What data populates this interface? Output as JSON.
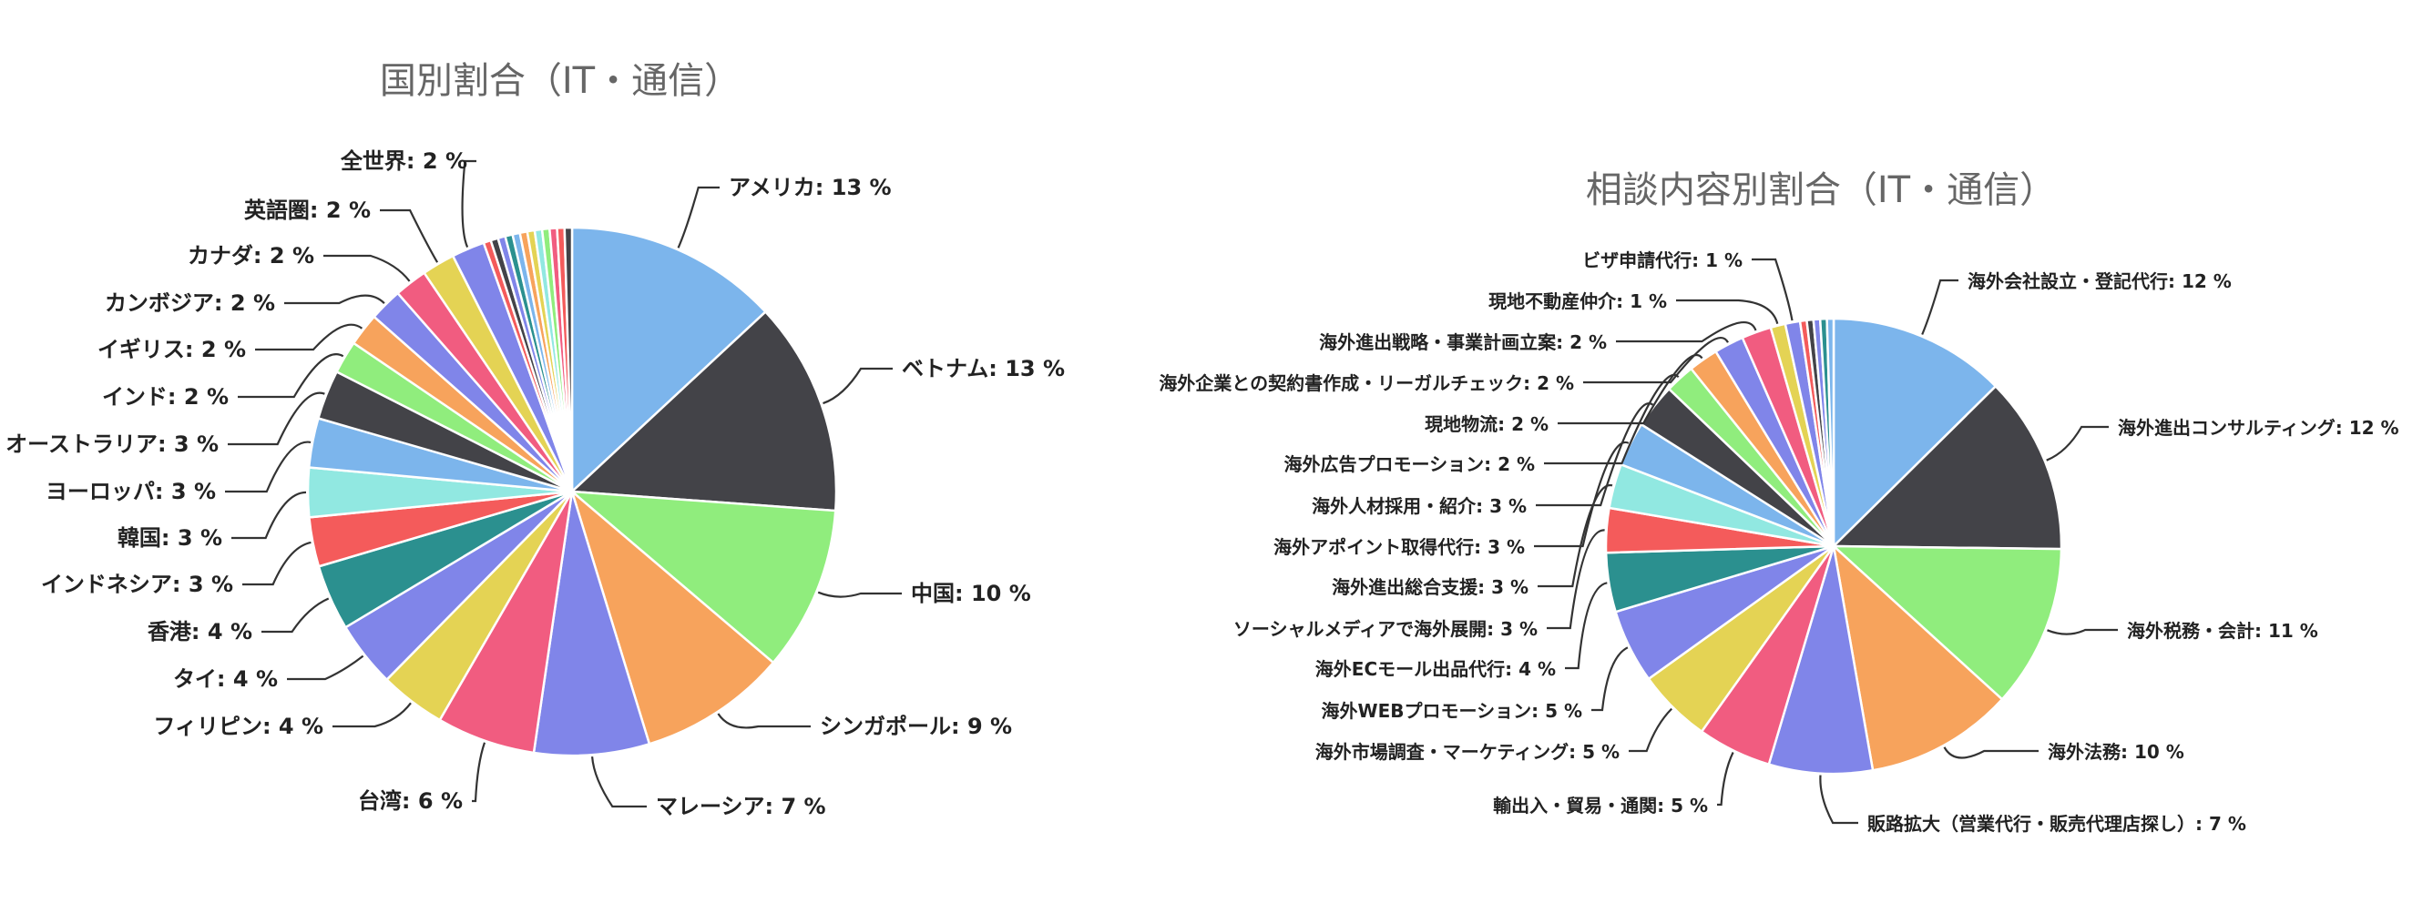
{
  "chart_data": [
    {
      "type": "pie",
      "title": "国別割合（IT・通信）",
      "categories": [
        "アメリカ",
        "ベトナム",
        "中国",
        "シンガポール",
        "マレーシア",
        "台湾",
        "フィリピン",
        "タイ",
        "香港",
        "インドネシア",
        "韓国",
        "ヨーロッパ",
        "オーストラリア",
        "インド",
        "イギリス",
        "カンボジア",
        "カナダ",
        "英語圏",
        "全世界"
      ],
      "values": [
        13,
        13,
        10,
        9,
        7,
        6,
        4,
        4,
        4,
        3,
        3,
        3,
        3,
        2,
        2,
        2,
        2,
        2,
        2
      ],
      "labels": [
        "アメリカ: 13 %",
        "ベトナム: 13 %",
        "中国: 10 %",
        "シンガポール: 9 %",
        "マレーシア: 7 %",
        "台湾: 6 %",
        "フィリピン: 4 %",
        "タイ: 4 %",
        "香港: 4 %",
        "インドネシア: 3 %",
        "韓国: 3 %",
        "ヨーロッパ: 3 %",
        "オーストラリア: 3 %",
        "インド: 2 %",
        "イギリス: 2 %",
        "カンボジア: 2 %",
        "カナダ: 2 %",
        "英語圏: 2 %",
        "全世界: 2 %"
      ],
      "colors": [
        "#7cb5ec",
        "#434348",
        "#90ed7d",
        "#f7a35c",
        "#8085e9",
        "#f15c80",
        "#e4d354",
        "#2b908f",
        "#f45b5b",
        "#91e8e1"
      ],
      "slice_color_index": [
        0,
        1,
        2,
        3,
        4,
        5,
        6,
        4,
        7,
        8,
        9,
        0,
        1,
        2,
        3,
        4,
        5,
        6,
        4
      ],
      "small_slices_unlabeled": 12,
      "legend": "none"
    },
    {
      "type": "pie",
      "title": "相談内容別割合（IT・通信）",
      "categories": [
        "海外会社設立・登記代行",
        "海外進出コンサルティング",
        "海外税務・会計",
        "海外法務",
        "販路拡大（営業代行・販売代理店探し）",
        "輸出入・貿易・通関",
        "海外市場調査・マーケティング",
        "海外WEBプロモーション",
        "海外ECモール出品代行",
        "ソーシャルメディアで海外展開",
        "海外進出総合支援",
        "海外アポイント取得代行",
        "海外人材採用・紹介",
        "海外広告プロモーション",
        "現地物流",
        "海外企業との契約書作成・リーガルチェック",
        "海外進出戦略・事業計画立案",
        "現地不動産仲介",
        "ビザ申請代行"
      ],
      "values": [
        12,
        12,
        11,
        10,
        7,
        5,
        5,
        5,
        4,
        3,
        3,
        3,
        3,
        2,
        2,
        2,
        2,
        1,
        1
      ],
      "labels": [
        "海外会社設立・登記代行: 12 %",
        "海外進出コンサルティング: 12 %",
        "海外税務・会計: 11 %",
        "海外法務: 10 %",
        "販路拡大（営業代行・販売代理店探し）: 7 %",
        "輸出入・貿易・通関: 5 %",
        "海外市場調査・マーケティング: 5 %",
        "海外WEBプロモーション: 5 %",
        "海外ECモール出品代行: 4 %",
        "ソーシャルメディアで海外展開: 3 %",
        "海外進出総合支援: 3 %",
        "海外アポイント取得代行: 3 %",
        "海外人材採用・紹介: 3 %",
        "海外広告プロモーション: 2 %",
        "現地物流: 2 %",
        "海外企業との契約書作成・リーガルチェック: 2 %",
        "海外進出戦略・事業計画立案: 2 %",
        "現地不動産仲介: 1 %",
        "ビザ申請代行: 1 %"
      ],
      "colors": [
        "#7cb5ec",
        "#434348",
        "#90ed7d",
        "#f7a35c",
        "#8085e9",
        "#f15c80",
        "#e4d354",
        "#2b908f",
        "#f45b5b",
        "#91e8e1"
      ],
      "slice_color_index": [
        0,
        1,
        2,
        3,
        4,
        5,
        6,
        4,
        7,
        8,
        9,
        0,
        1,
        2,
        3,
        4,
        5,
        6,
        4
      ],
      "small_slices_unlabeled": 5,
      "legend": "none"
    }
  ]
}
